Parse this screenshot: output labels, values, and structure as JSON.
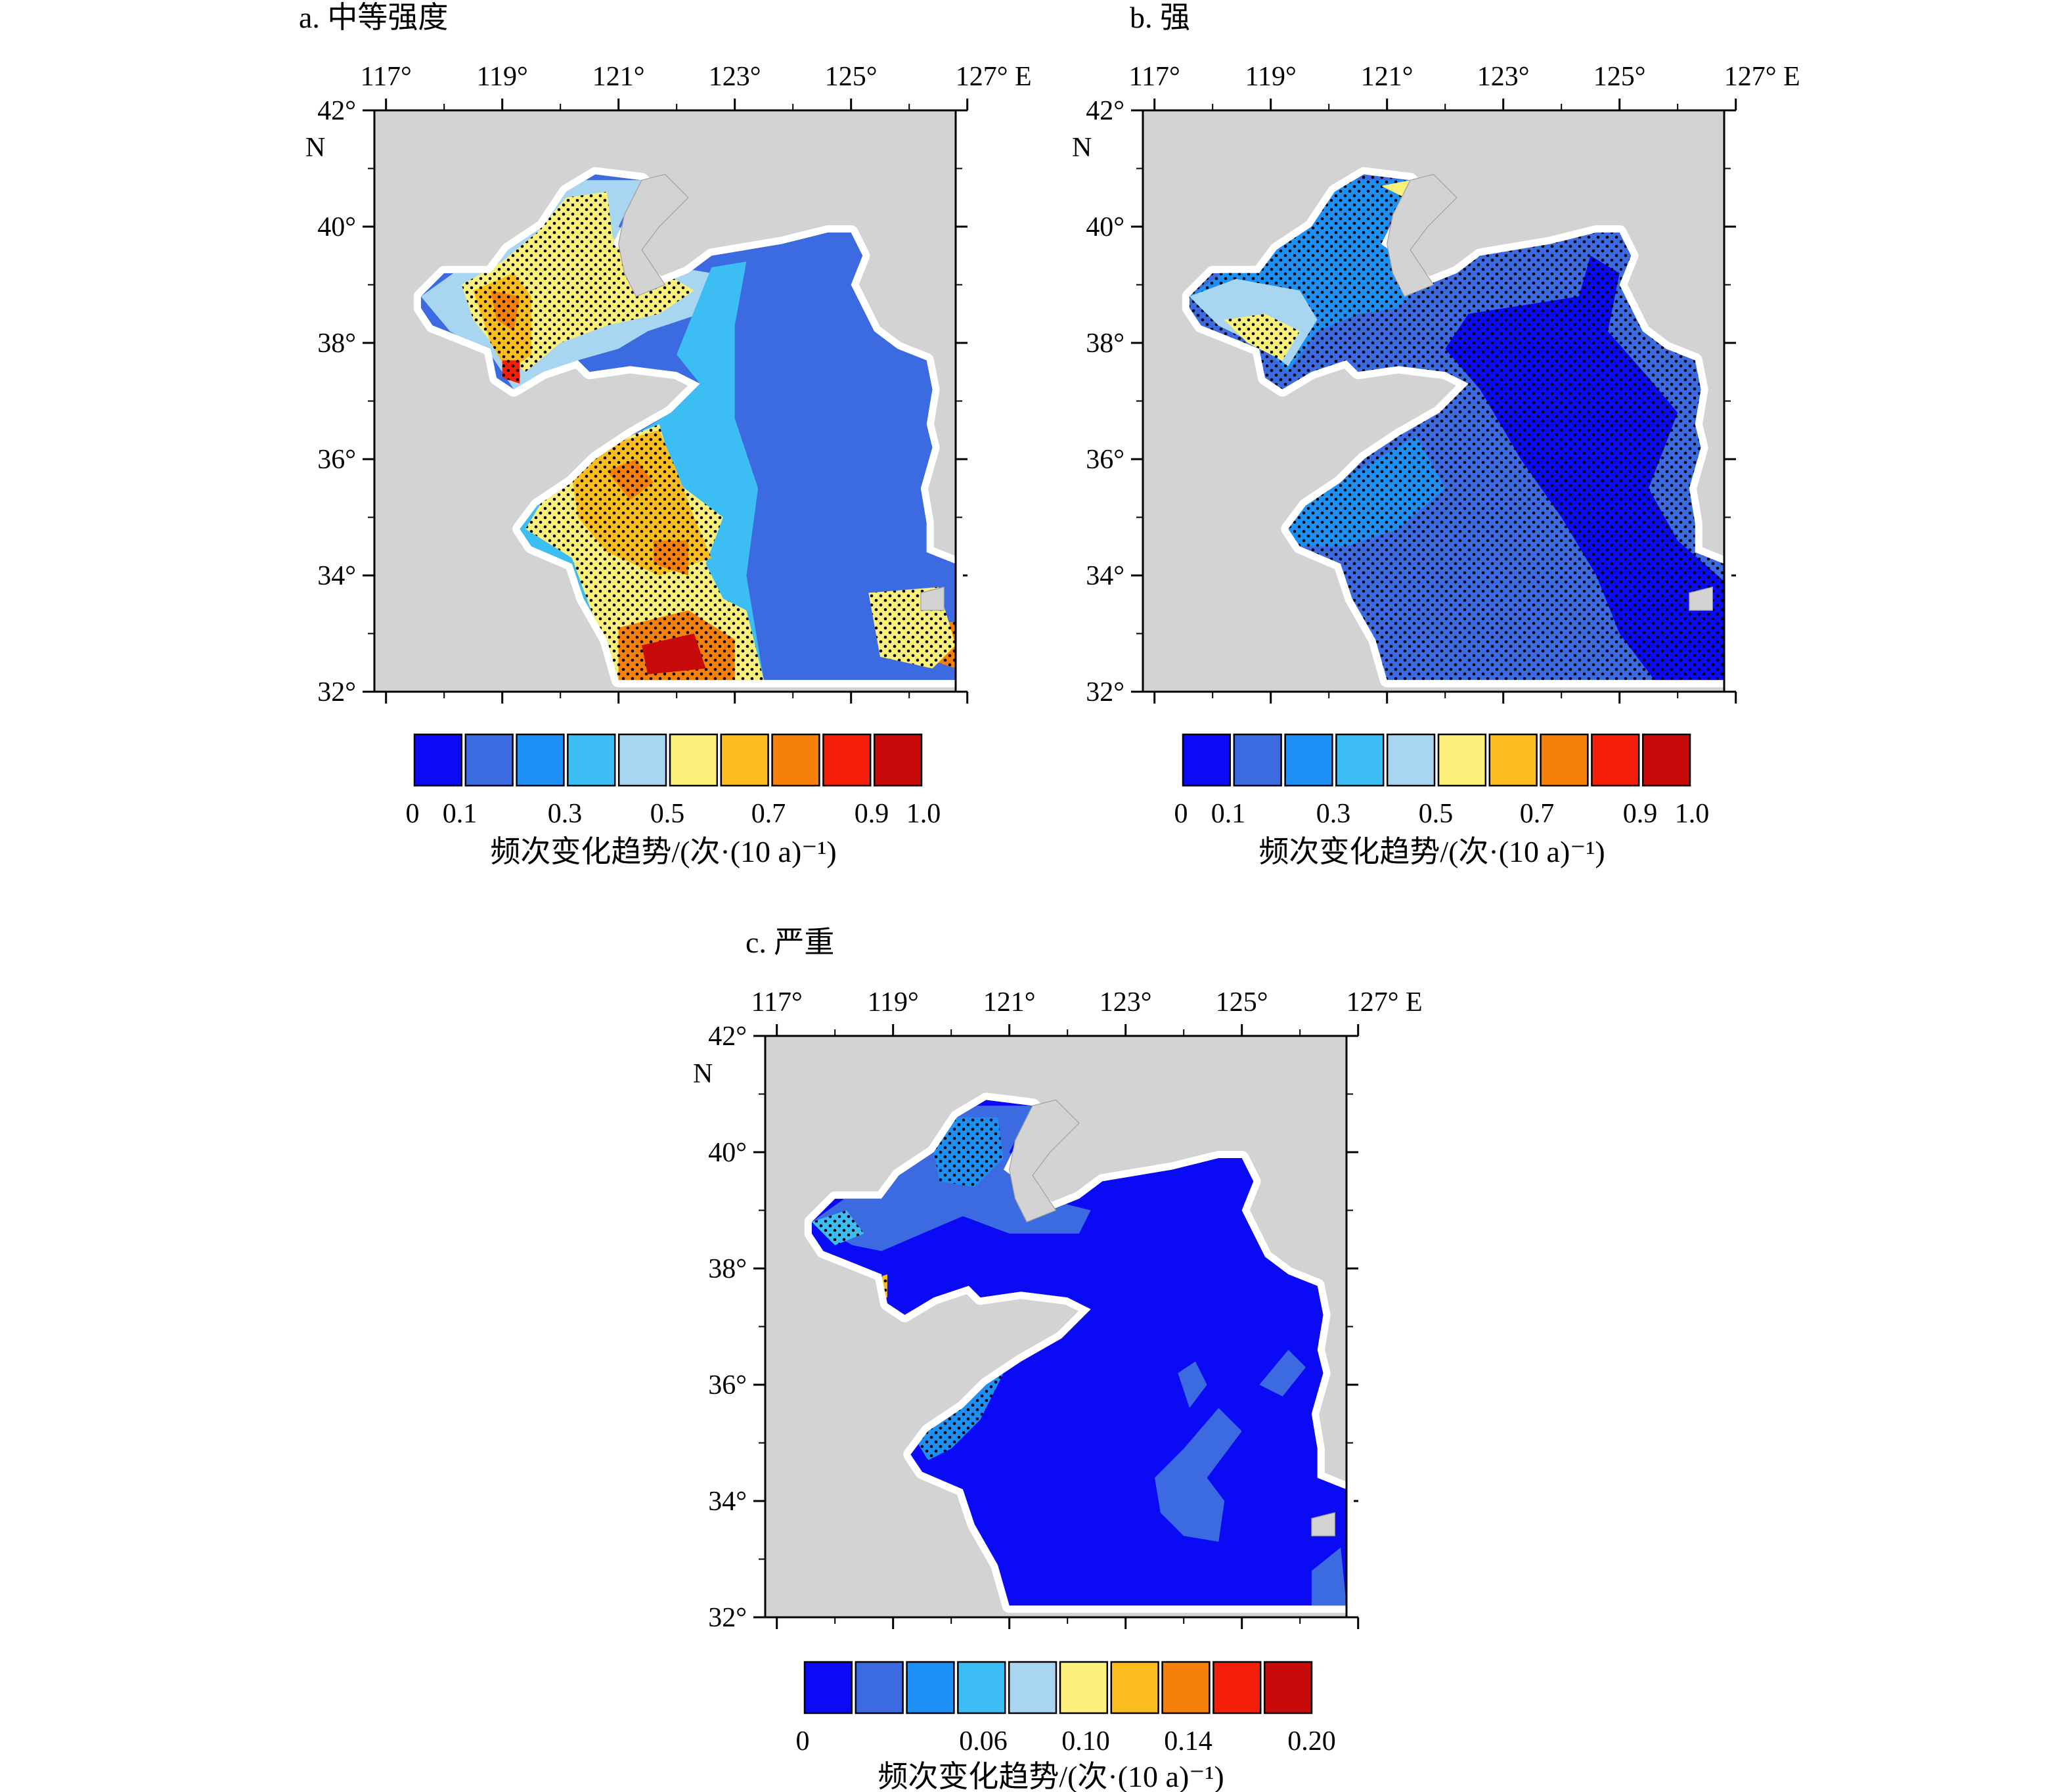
{
  "panels": [
    {
      "id": "a",
      "title": "a. 中等强度",
      "lon_ticks": [
        "117°",
        "119°",
        "121°",
        "123°",
        "125°",
        "127° E"
      ],
      "lat_ticks": [
        "42°",
        "40°",
        "38°",
        "36°",
        "34°",
        "32°"
      ],
      "lat_unit": "N",
      "colorbar": {
        "labels": [
          "0",
          "0.1",
          "0.3",
          "0.5",
          "0.7",
          "0.9",
          "1.0"
        ],
        "title": "频次变化趋势/(次·(10 a)⁻¹)"
      },
      "pattern": "moderate"
    },
    {
      "id": "b",
      "title": "b. 强",
      "lon_ticks": [
        "117°",
        "119°",
        "121°",
        "123°",
        "125°",
        "127° E"
      ],
      "lat_ticks": [
        "42°",
        "40°",
        "38°",
        "36°",
        "34°",
        "32°"
      ],
      "lat_unit": "N",
      "colorbar": {
        "labels": [
          "0",
          "0.1",
          "0.3",
          "0.5",
          "0.7",
          "0.9",
          "1.0"
        ],
        "title": "频次变化趋势/(次·(10 a)⁻¹)"
      },
      "pattern": "strong"
    },
    {
      "id": "c",
      "title": "c. 严重",
      "lon_ticks": [
        "117°",
        "119°",
        "121°",
        "123°",
        "125°",
        "127° E"
      ],
      "lat_ticks": [
        "42°",
        "40°",
        "38°",
        "36°",
        "34°",
        "32°"
      ],
      "lat_unit": "N",
      "colorbar": {
        "labels": [
          "0",
          "0.06",
          "0.10",
          "0.14",
          "0.20"
        ],
        "title": "频次变化趋势/(次·(10 a)⁻¹)"
      },
      "pattern": "severe"
    }
  ],
  "colors": {
    "land": "#d3d3d3",
    "levels": [
      "#0a0af5",
      "#3c6ae0",
      "#1e90f5",
      "#3cbef5",
      "#a8d6f0",
      "#faf07a",
      "#fbbd1e",
      "#f7800a",
      "#f51e0a",
      "#c80a0a"
    ],
    "stipple": "#000000"
  }
}
